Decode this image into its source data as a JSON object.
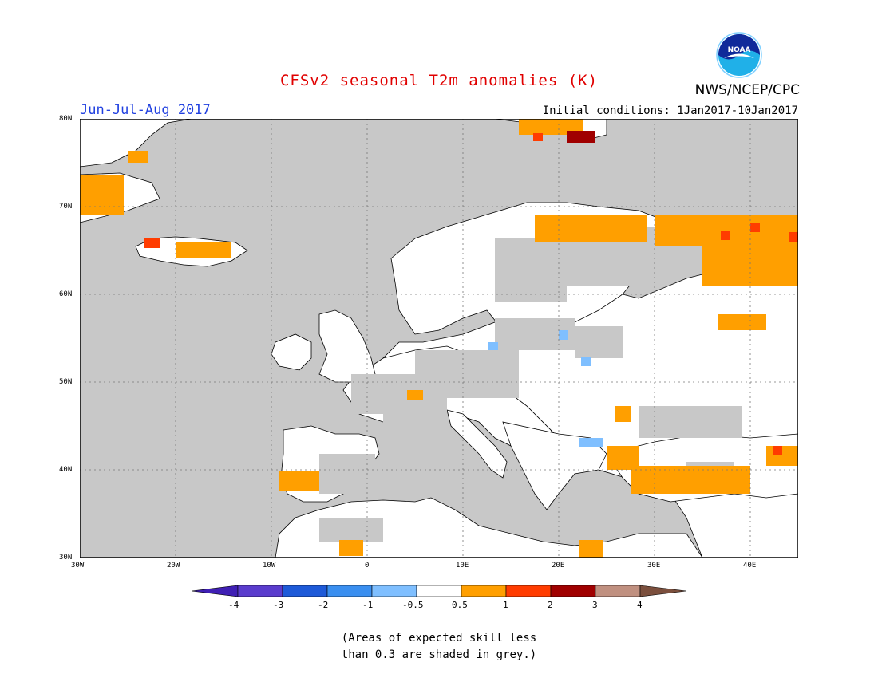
{
  "header": {
    "title": "CFSv2 seasonal T2m anomalies (K)",
    "season": "Jun-Jul-Aug 2017",
    "agency": "NWS/NCEP/CPC",
    "initial_conditions": "Initial conditions: 1Jan2017-10Jan2017",
    "logo_text": "NOAA"
  },
  "map": {
    "region": {
      "lon_min": -30,
      "lon_max": 45,
      "lat_min": 30,
      "lat_max": 80
    },
    "lat_labels": [
      "30N",
      "40N",
      "50N",
      "60N",
      "70N",
      "80N"
    ],
    "lon_labels": [
      "30W",
      "20W",
      "10W",
      "0",
      "10E",
      "20E",
      "30E",
      "40E"
    ],
    "grid": "dotted",
    "ocean_color": "#c8c8c8",
    "coast_color": "#000000",
    "grey_meaning": "skill < 0.3",
    "anomaly_regions": [
      {
        "name": "Northern Scandinavia / Kola",
        "anomaly_range": [
          0.5,
          1
        ],
        "color": "#ff9f00"
      },
      {
        "name": "Northwest Russia (east of 40E)",
        "anomaly_range": [
          0.5,
          1
        ],
        "color": "#ff9f00"
      },
      {
        "name": "Turkey / Anatolia",
        "anomaly_range": [
          0.5,
          1
        ],
        "color": "#ff9f00"
      },
      {
        "name": "Southwest Iberia",
        "anomaly_range": [
          0.5,
          1
        ],
        "color": "#ff9f00"
      },
      {
        "name": "Svalbard",
        "anomaly_range": [
          1,
          3
        ],
        "color": "#ff3000"
      },
      {
        "name": "Iceland (northwest)",
        "anomaly_range": [
          1,
          2
        ],
        "color": "#ff3000"
      },
      {
        "name": "Poland / Baltic spots",
        "anomaly_range": [
          -1,
          -0.5
        ],
        "color": "#7fbfff"
      },
      {
        "name": "Eastern Europe / Russia",
        "anomaly_range": [
          -0.5,
          0.5
        ],
        "color": "#ffffff"
      }
    ]
  },
  "colorbar": {
    "labels": [
      "-4",
      "-3",
      "-2",
      "-1",
      "-0.5",
      "0.5",
      "1",
      "2",
      "3",
      "4"
    ],
    "colors": [
      "#3f1fb4",
      "#5a3ccd",
      "#1e5ad8",
      "#3a8ff0",
      "#7fbfff",
      "#ffffff",
      "#ff9f00",
      "#ff3c00",
      "#a00000",
      "#c09080",
      "#7b4f3d"
    ]
  },
  "footnote": {
    "line1": "(Areas of expected skill less",
    "line2": "than 0.3 are shaded in grey.)"
  }
}
